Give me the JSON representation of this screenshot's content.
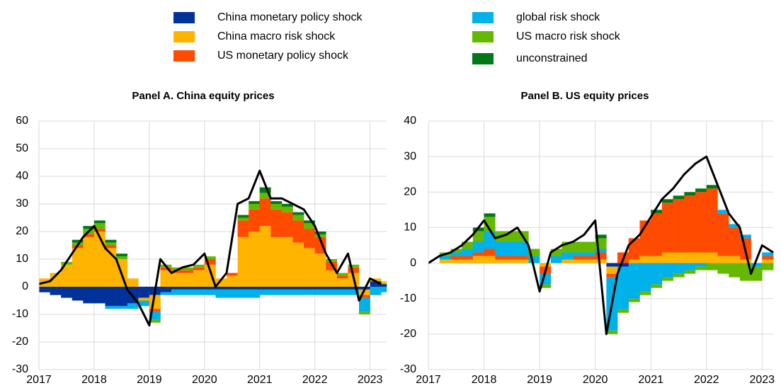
{
  "legend_columns": 2,
  "chart_data": [
    {
      "type": "stacked-bar-line",
      "title": "Panel A. China equity prices",
      "x": [
        2017,
        2017.2,
        2017.4,
        2017.6,
        2017.8,
        2018,
        2018.2,
        2018.4,
        2018.6,
        2018.8,
        2019,
        2019.2,
        2019.4,
        2019.6,
        2019.8,
        2020,
        2020.2,
        2020.4,
        2020.6,
        2020.8,
        2021,
        2021.2,
        2021.4,
        2021.6,
        2021.8,
        2022,
        2022.2,
        2022.4,
        2022.6,
        2022.8,
        2023,
        2023.2
      ],
      "xlim": [
        2017,
        2023.3
      ],
      "xticks": [
        2017,
        2018,
        2019,
        2020,
        2021,
        2022,
        2023
      ],
      "ylim": [
        -30,
        60
      ],
      "yticks": [
        -30,
        -20,
        -10,
        0,
        10,
        20,
        30,
        40,
        50,
        60
      ],
      "grid": true,
      "series": [
        {
          "name": "China monetary policy shock",
          "color": "#003299",
          "values": [
            -2,
            -3,
            -4,
            -5,
            -6,
            -6,
            -7,
            -7,
            -6,
            -4,
            -3,
            -2,
            -1,
            -1,
            -1,
            -1,
            -1,
            -1,
            -1,
            -1,
            -1,
            -1,
            -1,
            -1,
            -1,
            -1,
            -1,
            -1,
            -1,
            -1,
            2,
            1
          ]
        },
        {
          "name": "China macro risk shock",
          "color": "#ffb400",
          "values": [
            3,
            5,
            8,
            14,
            18,
            20,
            14,
            10,
            3,
            -1,
            -5,
            6,
            5,
            5,
            6,
            8,
            3,
            4,
            18,
            20,
            22,
            18,
            18,
            16,
            14,
            12,
            6,
            3,
            5,
            -2,
            1,
            1
          ]
        },
        {
          "name": "US monetary policy shock",
          "color": "#ff4b00",
          "values": [
            0,
            0,
            0,
            1,
            1,
            1,
            1,
            0,
            0,
            0,
            -1,
            1,
            1,
            1,
            1,
            2,
            0,
            1,
            6,
            8,
            10,
            10,
            9,
            8,
            7,
            6,
            3,
            1,
            2,
            -1,
            0,
            0
          ]
        },
        {
          "name": "global risk shock",
          "color": "#00b1ea",
          "values": [
            0,
            0,
            0,
            0,
            0,
            0,
            -1,
            -1,
            -2,
            -2,
            -3,
            -1,
            -2,
            -2,
            -2,
            -2,
            -3,
            -3,
            -3,
            -3,
            -2,
            -2,
            -2,
            -2,
            -2,
            -2,
            -2,
            -2,
            -2,
            -5,
            -3,
            -2
          ]
        },
        {
          "name": "US macro risk shock",
          "color": "#65b800",
          "values": [
            0,
            0,
            1,
            1,
            2,
            2,
            1,
            1,
            0,
            0,
            -1,
            1,
            1,
            1,
            1,
            1,
            0,
            0,
            1,
            2,
            2,
            2,
            2,
            2,
            2,
            1,
            1,
            1,
            1,
            -1,
            0,
            0
          ]
        },
        {
          "name": "unconstrained",
          "color": "#007816",
          "values": [
            0,
            0,
            0,
            1,
            1,
            1,
            1,
            1,
            0,
            0,
            0,
            0,
            0,
            0,
            0,
            0,
            0,
            0,
            1,
            1,
            2,
            1,
            1,
            1,
            1,
            1,
            0,
            0,
            0,
            0,
            0,
            0
          ]
        }
      ],
      "line": {
        "color": "#000000",
        "values": [
          1,
          2,
          6,
          12,
          18,
          22,
          14,
          10,
          -1,
          -6,
          -14,
          10,
          5,
          7,
          8,
          12,
          0,
          5,
          30,
          32,
          42,
          32,
          32,
          30,
          28,
          22,
          12,
          5,
          12,
          -5,
          3,
          1
        ]
      }
    },
    {
      "type": "stacked-bar-line",
      "title": "Panel B. US equity prices",
      "x": [
        2017,
        2017.2,
        2017.4,
        2017.6,
        2017.8,
        2018,
        2018.2,
        2018.4,
        2018.6,
        2018.8,
        2019,
        2019.2,
        2019.4,
        2019.6,
        2019.8,
        2020,
        2020.2,
        2020.4,
        2020.6,
        2020.8,
        2021,
        2021.2,
        2021.4,
        2021.6,
        2021.8,
        2022,
        2022.2,
        2022.4,
        2022.6,
        2022.8,
        2023,
        2023.2
      ],
      "xlim": [
        2017,
        2023.2
      ],
      "xticks": [
        2017,
        2018,
        2019,
        2020,
        2021,
        2022,
        2023
      ],
      "ylim": [
        -30,
        40
      ],
      "yticks": [
        -30,
        -20,
        -10,
        0,
        10,
        20,
        30,
        40
      ],
      "grid": true,
      "series": [
        {
          "color": "#003299",
          "values": [
            0,
            0,
            0,
            0,
            0,
            0,
            0,
            0,
            0,
            0,
            0,
            0,
            0,
            0,
            0,
            0,
            -1,
            -1,
            0,
            0,
            0,
            0,
            0,
            0,
            0,
            0,
            0,
            0,
            0,
            0,
            0,
            0
          ]
        },
        {
          "color": "#ffb400",
          "values": [
            0,
            1,
            1,
            1,
            2,
            2,
            1,
            1,
            1,
            0,
            -1,
            0,
            1,
            1,
            1,
            1,
            -2,
            0,
            1,
            2,
            2,
            3,
            3,
            3,
            3,
            3,
            2,
            2,
            1,
            0,
            1,
            1
          ]
        },
        {
          "color": "#ff4b00",
          "values": [
            0,
            0,
            1,
            1,
            1,
            2,
            1,
            1,
            1,
            0,
            -2,
            0,
            0,
            1,
            1,
            2,
            -1,
            3,
            6,
            10,
            12,
            14,
            15,
            16,
            17,
            18,
            12,
            8,
            6,
            0,
            1,
            1
          ]
        },
        {
          "color": "#00b1ea",
          "values": [
            0,
            1,
            1,
            2,
            3,
            5,
            4,
            4,
            4,
            2,
            -3,
            2,
            2,
            1,
            1,
            1,
            -15,
            -12,
            -10,
            -8,
            -6,
            -4,
            -3,
            -2,
            -1,
            0,
            1,
            1,
            1,
            -1,
            1,
            0
          ]
        },
        {
          "color": "#65b800",
          "values": [
            0,
            1,
            1,
            2,
            3,
            4,
            3,
            3,
            3,
            2,
            -1,
            2,
            3,
            3,
            3,
            3,
            -1,
            -1,
            -1,
            -1,
            -1,
            -1,
            -1,
            -1,
            -1,
            -2,
            -3,
            -4,
            -5,
            -4,
            -2,
            -1
          ]
        },
        {
          "color": "#007816",
          "values": [
            0,
            0,
            0,
            0,
            1,
            1,
            0,
            0,
            0,
            0,
            0,
            0,
            0,
            0,
            0,
            1,
            0,
            0,
            0,
            0,
            1,
            1,
            1,
            1,
            1,
            1,
            0,
            0,
            0,
            0,
            0,
            0
          ]
        }
      ],
      "line": {
        "color": "#000000",
        "values": [
          0,
          2,
          3,
          5,
          8,
          12,
          7,
          8,
          10,
          5,
          -8,
          3,
          5,
          6,
          8,
          12,
          -20,
          -3,
          5,
          8,
          13,
          18,
          21,
          25,
          28,
          30,
          22,
          14,
          10,
          -3,
          5,
          3
        ]
      }
    }
  ]
}
